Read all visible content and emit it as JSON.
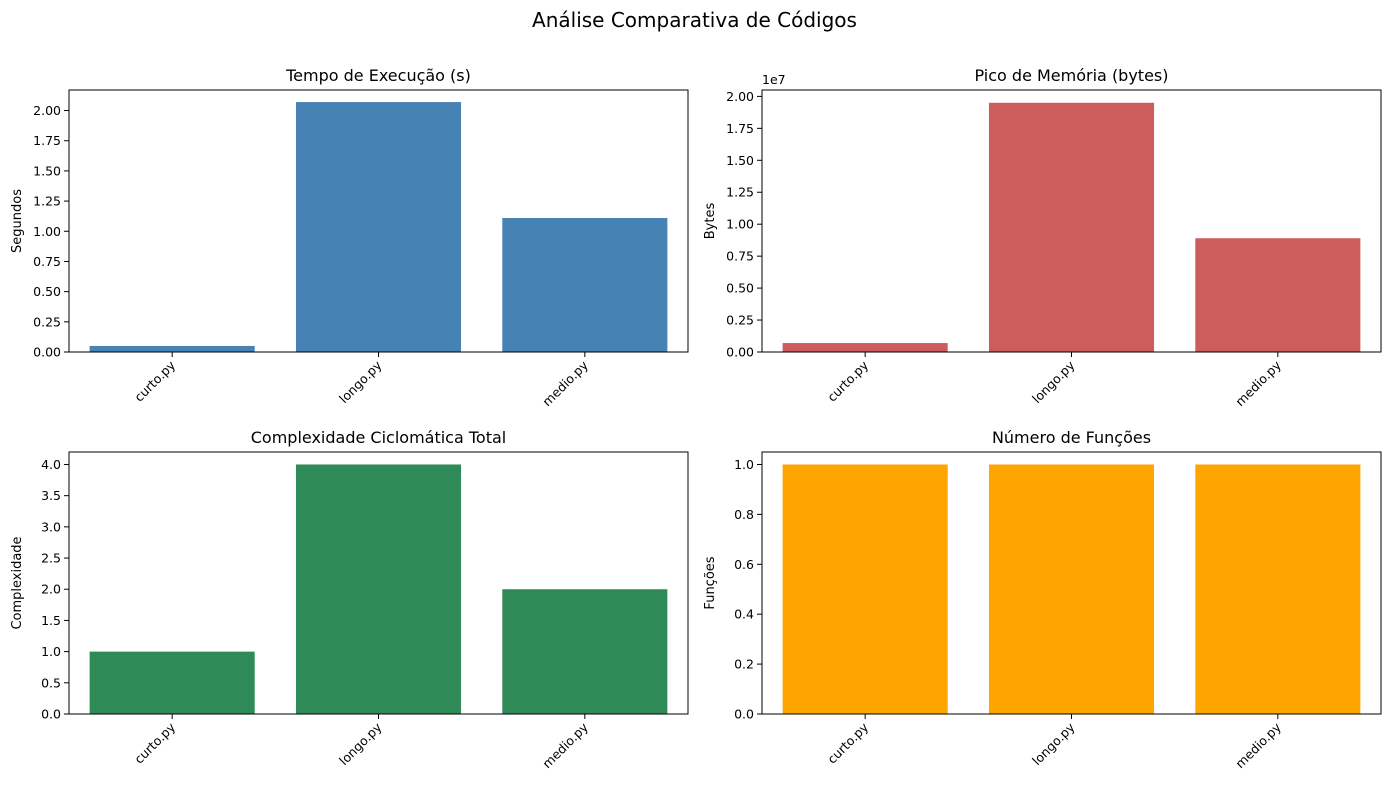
{
  "figure": {
    "title": "Análise Comparativa de Códigos"
  },
  "chart_data": [
    {
      "type": "bar",
      "title": "Tempo de Execução (s)",
      "xlabel": "",
      "ylabel": "Segundos",
      "categories": [
        "curto.py",
        "longo.py",
        "medio.py"
      ],
      "values": [
        0.05,
        2.07,
        1.11
      ],
      "color": "#4682b4",
      "ylim": [
        0,
        2.17
      ],
      "yticks": [
        0,
        0.25,
        0.5,
        0.75,
        1.0,
        1.25,
        1.5,
        1.75,
        2.0
      ],
      "ytick_labels": [
        "0.00",
        "0.25",
        "0.50",
        "0.75",
        "1.00",
        "1.25",
        "1.50",
        "1.75",
        "2.00"
      ],
      "offset_text": ""
    },
    {
      "type": "bar",
      "title": "Pico de Memória (bytes)",
      "xlabel": "",
      "ylabel": "Bytes",
      "categories": [
        "curto.py",
        "longo.py",
        "medio.py"
      ],
      "values": [
        0.07,
        1.95,
        0.89
      ],
      "color": "#cd5c5c",
      "ylim": [
        0,
        2.05
      ],
      "yticks": [
        0,
        0.25,
        0.5,
        0.75,
        1.0,
        1.25,
        1.5,
        1.75,
        2.0
      ],
      "ytick_labels": [
        "0.00",
        "0.25",
        "0.50",
        "0.75",
        "1.00",
        "1.25",
        "1.50",
        "1.75",
        "2.00"
      ],
      "offset_text": "1e7"
    },
    {
      "type": "bar",
      "title": "Complexidade Ciclomática Total",
      "xlabel": "",
      "ylabel": "Complexidade",
      "categories": [
        "curto.py",
        "longo.py",
        "medio.py"
      ],
      "values": [
        1,
        4,
        2
      ],
      "color": "#2e8b57",
      "ylim": [
        0,
        4.2
      ],
      "yticks": [
        0,
        0.5,
        1.0,
        1.5,
        2.0,
        2.5,
        3.0,
        3.5,
        4.0
      ],
      "ytick_labels": [
        "0.0",
        "0.5",
        "1.0",
        "1.5",
        "2.0",
        "2.5",
        "3.0",
        "3.5",
        "4.0"
      ],
      "offset_text": ""
    },
    {
      "type": "bar",
      "title": "Número de Funções",
      "xlabel": "",
      "ylabel": "Funções",
      "categories": [
        "curto.py",
        "longo.py",
        "medio.py"
      ],
      "values": [
        1,
        1,
        1
      ],
      "color": "#ffa500",
      "ylim": [
        0,
        1.05
      ],
      "yticks": [
        0,
        0.2,
        0.4,
        0.6,
        0.8,
        1.0
      ],
      "ytick_labels": [
        "0.0",
        "0.2",
        "0.4",
        "0.6",
        "0.8",
        "1.0"
      ],
      "offset_text": ""
    }
  ]
}
